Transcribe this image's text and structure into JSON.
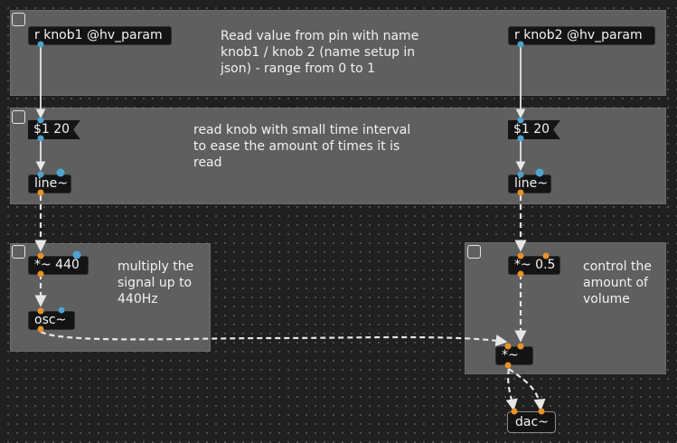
{
  "canvas": {
    "background": "#202020",
    "panel_color": "#5f5f5f",
    "signal_inlet_color": "#e8922a",
    "control_inlet_color": "#4fa3cf"
  },
  "panels": {
    "read": {
      "comment": "Read value from pin with name\nknob1 / knob 2 (name setup in\njson) - range from 0 to 1"
    },
    "smooth": {
      "comment": "read knob with small time interval\nto ease the amount of times it is\nread"
    },
    "freq": {
      "comment": "multiply the\nsignal up to\n440Hz"
    },
    "volume": {
      "comment": "control the\namount of\nvolume"
    }
  },
  "objects": {
    "receive_knob1": "r knob1 @hv_param",
    "receive_knob2": "r knob2 @hv_param",
    "msg_left": "$1 20",
    "msg_right": "$1 20",
    "line_left": "line~",
    "line_right": "line~",
    "mult_440": "*~ 440",
    "mult_05": "*~ 0.5",
    "osc": "osc~",
    "mult_out": "*~",
    "dac": "dac~"
  }
}
